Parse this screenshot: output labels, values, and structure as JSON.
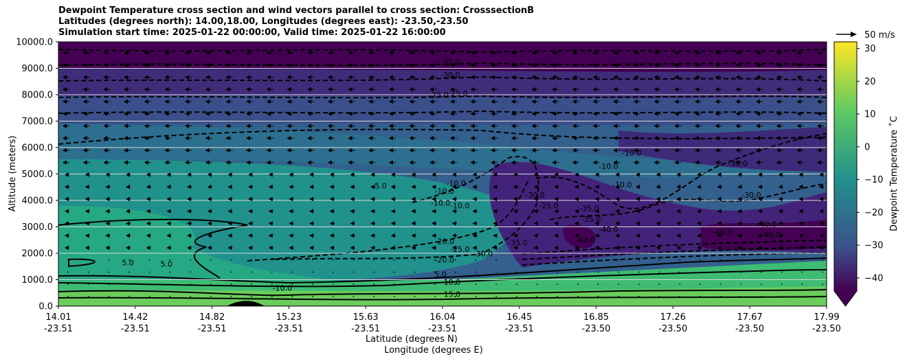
{
  "title": {
    "line1": "Dewpoint Temperature cross section and wind vectors parallel to cross section: CrosssectionB",
    "line2": "Latitudes (degrees north): 14.00,18.00, Longitudes (degrees east): -23.50,-23.50",
    "line3": "Simulation start time: 2025-01-22 00:00:00, Valid time: 2025-01-22 16:00:00"
  },
  "colors": {
    "low": "#440154",
    "mid_low": "#3b528b",
    "mid": "#21918c",
    "mid_high": "#5ec962",
    "high": "#fde725"
  },
  "chart_data": {
    "type": "heatmap",
    "variable": "Dewpoint Temperature",
    "xlabel_line1": "Latitude (degrees N)",
    "xlabel_line2": "Longitude (degrees E)",
    "ylabel": "Altitude (meters)",
    "ylim": [
      0,
      10000
    ],
    "x_ticks": [
      {
        "lat": "14.01",
        "lon": "-23.51"
      },
      {
        "lat": "14.42",
        "lon": "-23.51"
      },
      {
        "lat": "14.82",
        "lon": "-23.51"
      },
      {
        "lat": "15.23",
        "lon": "-23.51"
      },
      {
        "lat": "15.63",
        "lon": "-23.51"
      },
      {
        "lat": "16.04",
        "lon": "-23.51"
      },
      {
        "lat": "16.45",
        "lon": "-23.51"
      },
      {
        "lat": "16.85",
        "lon": "-23.50"
      },
      {
        "lat": "17.26",
        "lon": "-23.50"
      },
      {
        "lat": "17.67",
        "lon": "-23.50"
      },
      {
        "lat": "17.99",
        "lon": "-23.50"
      }
    ],
    "y_ticks": [
      "0.0",
      "1000.0",
      "2000.0",
      "3000.0",
      "4000.0",
      "5000.0",
      "6000.0",
      "7000.0",
      "8000.0",
      "9000.0",
      "10000.0"
    ],
    "grid": "horizontal",
    "colorbar": {
      "label": "Dewpoint Temperature ˚C",
      "range": [
        -44,
        32
      ],
      "ticks": [
        "30",
        "20",
        "10",
        "0",
        "−10",
        "−20",
        "−30",
        "−40"
      ],
      "extend": "min"
    },
    "quiver_key": "50 m/s",
    "wind_direction": "predominantly toward decreasing latitude (northerly component)",
    "contour_labels": [
      {
        "text": "-35.0",
        "lat": 16.04,
        "alt": 9150
      },
      {
        "text": "-30.0",
        "lat": 16.04,
        "alt": 8650
      },
      {
        "text": "-25.0",
        "lat": 15.98,
        "alt": 7900
      },
      {
        "text": "-25.0",
        "lat": 16.08,
        "alt": 7950
      },
      {
        "text": "-10.0",
        "lat": 16.07,
        "alt": 4550
      },
      {
        "text": "-10.0",
        "lat": 16.01,
        "alt": 4250
      },
      {
        "text": "-10.0",
        "lat": 15.99,
        "alt": 3800
      },
      {
        "text": "-10.0",
        "lat": 16.09,
        "alt": 3700
      },
      {
        "text": "-20.0",
        "lat": 16.01,
        "alt": 2350
      },
      {
        "text": "-20.0",
        "lat": 16.01,
        "alt": 1650
      },
      {
        "text": "-30.0",
        "lat": 16.21,
        "alt": 1880
      },
      {
        "text": "-10.0",
        "lat": 16.93,
        "alt": 4500
      },
      {
        "text": "-30.0",
        "lat": 17.53,
        "alt": 5300
      },
      {
        "text": "-10.0",
        "lat": 15.17,
        "alt": 580
      },
      {
        "text": "10.0",
        "lat": 16.05,
        "alt": 800
      },
      {
        "text": "15.0",
        "lat": 16.05,
        "alt": 350
      },
      {
        "text": "5.0",
        "lat": 14.37,
        "alt": 1550
      },
      {
        "text": "5.0",
        "lat": 14.57,
        "alt": 1500
      },
      {
        "text": "5.0",
        "lat": 15.68,
        "alt": 4450
      },
      {
        "text": "5.0",
        "lat": 15.99,
        "alt": 1100
      },
      {
        "text": "-30.0",
        "lat": 16.48,
        "alt": 4100
      },
      {
        "text": "-25.0",
        "lat": 16.55,
        "alt": 3700
      },
      {
        "text": "-35.0",
        "lat": 16.76,
        "alt": 3600
      },
      {
        "text": "-35.0",
        "lat": 16.77,
        "alt": 3200
      },
      {
        "text": "-40.0",
        "lat": 16.74,
        "alt": 2400
      },
      {
        "text": "-40.0",
        "lat": 16.86,
        "alt": 2800
      },
      {
        "text": "-35.0",
        "lat": 16.39,
        "alt": 2300
      },
      {
        "text": "-10.0",
        "lat": 16.86,
        "alt": 5200
      },
      {
        "text": "-10.0",
        "lat": 16.98,
        "alt": 5700
      },
      {
        "text": "-30.0",
        "lat": 17.6,
        "alt": 4100
      },
      {
        "text": "-40.0",
        "lat": 17.45,
        "alt": 2700
      },
      {
        "text": "-40.0",
        "lat": 17.68,
        "alt": 3000
      },
      {
        "text": "-40.0",
        "lat": 17.7,
        "alt": 2600
      },
      {
        "text": "-25.0",
        "lat": 16.09,
        "alt": 2050
      }
    ]
  }
}
